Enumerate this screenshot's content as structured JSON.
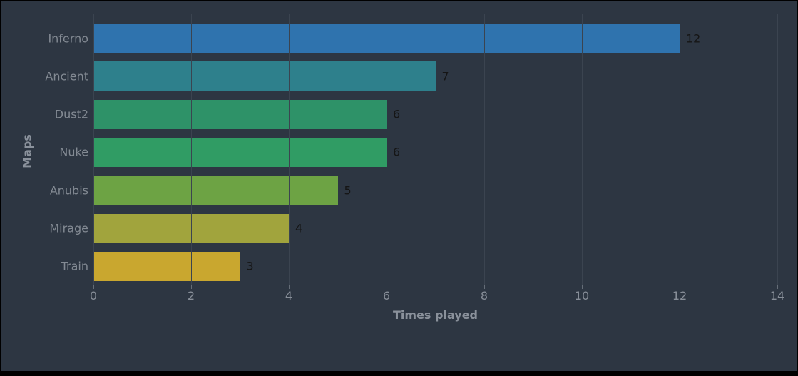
{
  "chart_data": {
    "type": "bar",
    "orientation": "horizontal",
    "categories": [
      "Inferno",
      "Ancient",
      "Dust2",
      "Nuke",
      "Anubis",
      "Mirage",
      "Train"
    ],
    "values": [
      12,
      7,
      6,
      6,
      5,
      4,
      3
    ],
    "value_labels": [
      "12",
      "7",
      "6",
      "6",
      "5",
      "4",
      "3"
    ],
    "bar_colors": [
      "#2f73ae",
      "#2e808c",
      "#2e9268",
      "#309c64",
      "#6da344",
      "#a1a43d",
      "#c9a72f"
    ],
    "xlabel": "Times played",
    "ylabel": "Maps",
    "xlim": [
      0,
      14
    ],
    "xticks": [
      0,
      2,
      4,
      6,
      8,
      10,
      12,
      14
    ],
    "grid": true,
    "legend": "none",
    "title": ""
  },
  "colors": {
    "background": "#2d3642",
    "frame_border": "#000000",
    "gridline": "#3b4450",
    "tick_label": "#878e98",
    "category_label": "#838a93",
    "axis_title": "#8a919b",
    "value_label": "#151515"
  }
}
